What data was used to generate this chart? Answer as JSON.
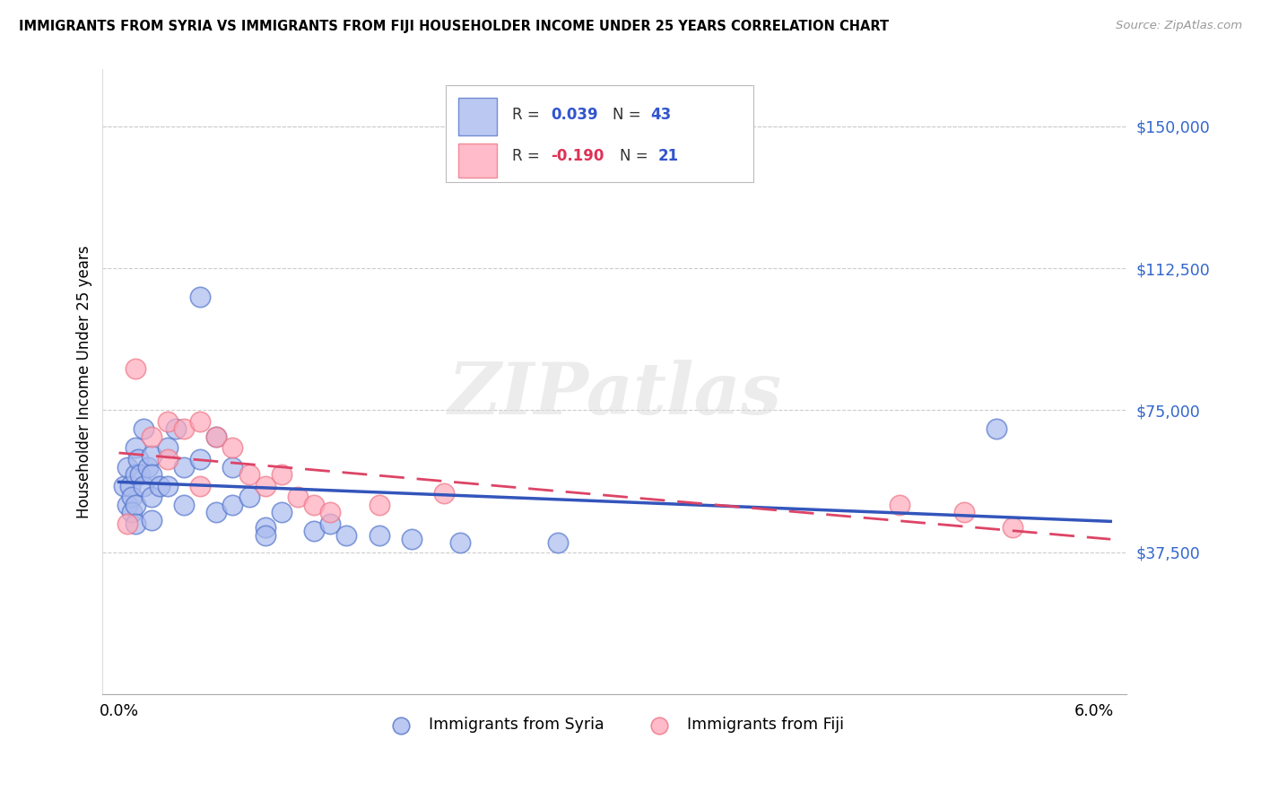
{
  "title": "IMMIGRANTS FROM SYRIA VS IMMIGRANTS FROM FIJI HOUSEHOLDER INCOME UNDER 25 YEARS CORRELATION CHART",
  "source": "Source: ZipAtlas.com",
  "ylabel": "Householder Income Under 25 years",
  "ytick_vals": [
    37500,
    75000,
    112500,
    150000
  ],
  "ytick_labels": [
    "$37,500",
    "$75,000",
    "$112,500",
    "$150,000"
  ],
  "xlim": [
    -0.001,
    0.062
  ],
  "ylim": [
    0,
    165000
  ],
  "syria_color_face": "#AABBEE",
  "syria_color_edge": "#5577CC",
  "fiji_color_face": "#FFAABC",
  "fiji_color_edge": "#EE7788",
  "line_syria_color": "#3355BB",
  "line_fiji_color": "#DD4466",
  "watermark_text": "ZIPatlas",
  "legend_bottom_syria": "Immigrants from Syria",
  "legend_bottom_fiji": "Immigrants from Fiji",
  "syria_x": [
    0.0003,
    0.0005,
    0.0005,
    0.0007,
    0.0008,
    0.0008,
    0.001,
    0.001,
    0.001,
    0.001,
    0.0012,
    0.0013,
    0.0015,
    0.0015,
    0.0018,
    0.002,
    0.002,
    0.002,
    0.002,
    0.0025,
    0.003,
    0.003,
    0.0035,
    0.004,
    0.004,
    0.005,
    0.005,
    0.006,
    0.006,
    0.007,
    0.007,
    0.008,
    0.009,
    0.009,
    0.01,
    0.012,
    0.013,
    0.014,
    0.016,
    0.018,
    0.021,
    0.027,
    0.054
  ],
  "syria_y": [
    55000,
    60000,
    50000,
    55000,
    52000,
    48000,
    65000,
    58000,
    50000,
    45000,
    62000,
    58000,
    70000,
    55000,
    60000,
    63000,
    58000,
    52000,
    46000,
    55000,
    65000,
    55000,
    70000,
    60000,
    50000,
    105000,
    62000,
    68000,
    48000,
    60000,
    50000,
    52000,
    44000,
    42000,
    48000,
    43000,
    45000,
    42000,
    42000,
    41000,
    40000,
    40000,
    70000
  ],
  "fiji_x": [
    0.0005,
    0.001,
    0.002,
    0.003,
    0.003,
    0.004,
    0.005,
    0.005,
    0.006,
    0.007,
    0.008,
    0.009,
    0.01,
    0.011,
    0.012,
    0.013,
    0.016,
    0.02,
    0.048,
    0.052,
    0.055
  ],
  "fiji_y": [
    45000,
    86000,
    68000,
    72000,
    62000,
    70000,
    72000,
    55000,
    68000,
    65000,
    58000,
    55000,
    58000,
    52000,
    50000,
    48000,
    50000,
    53000,
    50000,
    48000,
    44000
  ]
}
